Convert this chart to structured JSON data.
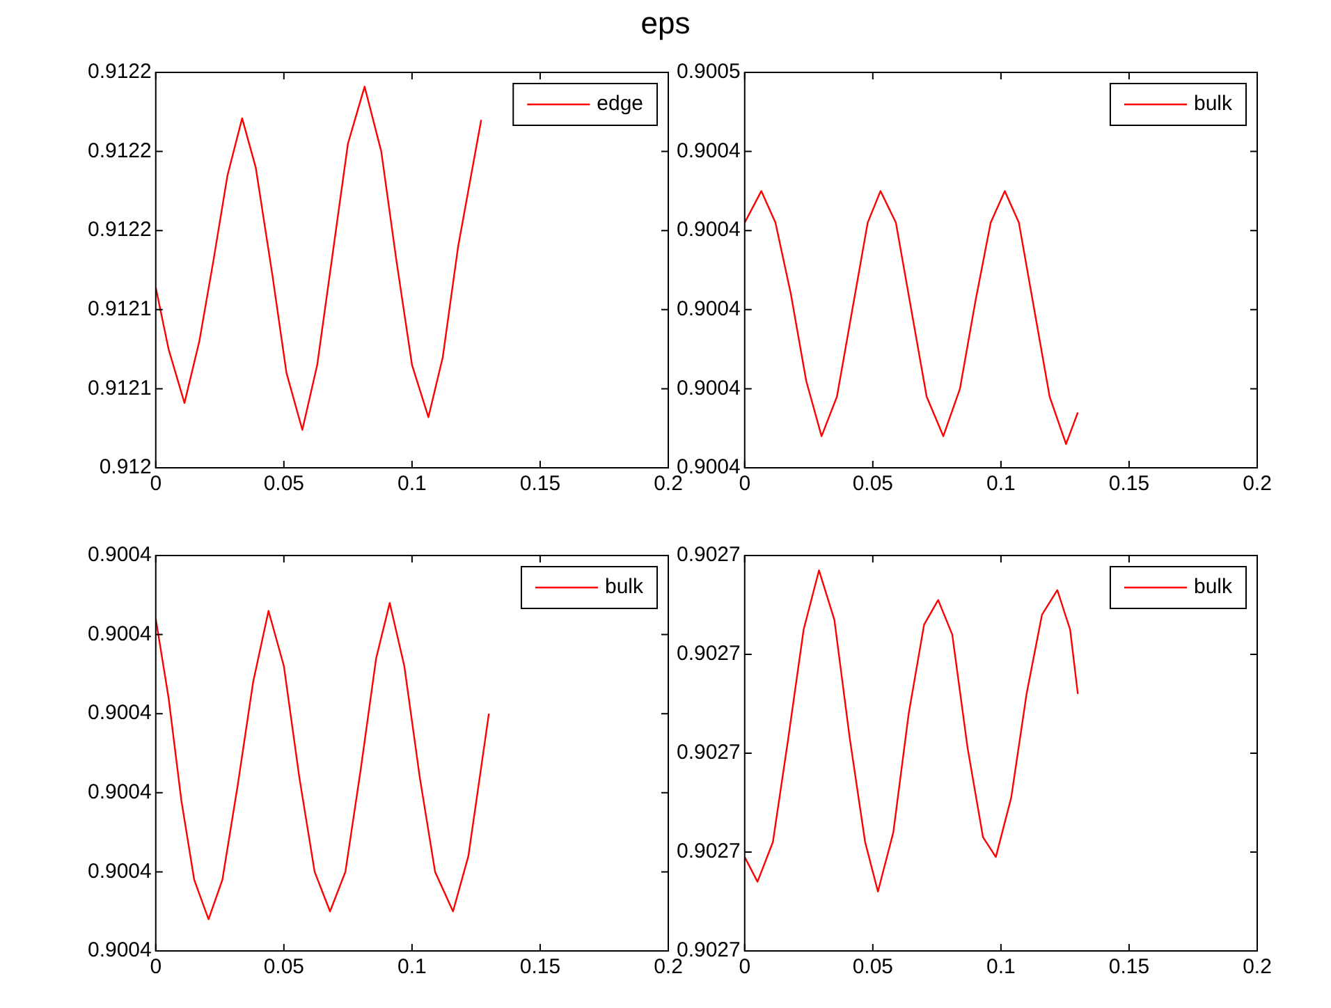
{
  "chart_data": [
    {
      "type": "line",
      "title": "eps",
      "legend": "top right",
      "marker": "none",
      "grid": false,
      "xlim": [
        0,
        0.2
      ],
      "xticks": [
        0,
        0.05,
        0.1,
        0.15,
        0.2
      ],
      "ylim": [
        0.912,
        0.91225
      ],
      "yticks": [
        0.912,
        {
          "value": 0.91205,
          "label": "0.9121"
        },
        {
          "value": 0.9121,
          "label": "0.9121"
        },
        {
          "value": 0.91215,
          "label": "0.9122"
        },
        {
          "value": 0.9122,
          "label": "0.9122"
        },
        {
          "value": 0.91225,
          "label": "0.9122"
        }
      ],
      "series": [
        {
          "name": "edge",
          "color": "#ff0000",
          "x": [
            0,
            0.005,
            0.0112,
            0.017,
            0.0225,
            0.028,
            0.0337,
            0.039,
            0.0455,
            0.051,
            0.0572,
            0.063,
            0.069,
            0.075,
            0.0815,
            0.088,
            0.094,
            0.1,
            0.1064,
            0.112,
            0.118,
            0.127
          ],
          "values": [
            0.912114,
            0.912075,
            0.912041,
            0.91208,
            0.912131,
            0.912185,
            0.912221,
            0.91219,
            0.912122,
            0.91206,
            0.912024,
            0.912065,
            0.912135,
            0.912205,
            0.912241,
            0.9122,
            0.91213,
            0.912065,
            0.912032,
            0.91207,
            0.91214,
            0.91222
          ]
        }
      ]
    },
    {
      "type": "line",
      "legend": "top right",
      "marker": "none",
      "grid": false,
      "xlim": [
        0,
        0.2
      ],
      "xticks": [
        0,
        0.05,
        0.1,
        0.15,
        0.2
      ],
      "ylim": [
        0.9004,
        0.90045
      ],
      "yticks": [
        0.9004,
        {
          "value": 0.90041,
          "label": "0.9004"
        },
        {
          "value": 0.90042,
          "label": "0.9004"
        },
        {
          "value": 0.90043,
          "label": "0.9004"
        },
        {
          "value": 0.90044,
          "label": "0.9004"
        },
        {
          "value": 0.90045,
          "label": "0.9005"
        }
      ],
      "series": [
        {
          "name": "bulk",
          "color": "#ff0000",
          "x": [
            0,
            0.0065,
            0.012,
            0.018,
            0.024,
            0.03,
            0.036,
            0.042,
            0.048,
            0.053,
            0.059,
            0.065,
            0.071,
            0.0775,
            0.084,
            0.09,
            0.096,
            0.1015,
            0.107,
            0.113,
            0.119,
            0.1254,
            0.13
          ],
          "values": [
            0.900431,
            0.900435,
            0.900431,
            0.900422,
            0.900411,
            0.900404,
            0.900409,
            0.90042,
            0.900431,
            0.900435,
            0.900431,
            0.90042,
            0.900409,
            0.900404,
            0.90041,
            0.900421,
            0.900431,
            0.900435,
            0.900431,
            0.90042,
            0.900409,
            0.900403,
            0.900407
          ]
        }
      ]
    },
    {
      "type": "line",
      "legend": "top right",
      "marker": "none",
      "grid": false,
      "xlim": [
        0,
        0.2
      ],
      "xticks": [
        0,
        0.05,
        0.1,
        0.15,
        0.2
      ],
      "ylim": [
        0.90036,
        0.90041
      ],
      "yticks": [
        {
          "value": 0.90036,
          "label": "0.9004"
        },
        {
          "value": 0.90037,
          "label": "0.9004"
        },
        {
          "value": 0.90038,
          "label": "0.9004"
        },
        {
          "value": 0.90039,
          "label": "0.9004"
        },
        {
          "value": 0.9004,
          "label": "0.9004"
        },
        {
          "value": 0.90041,
          "label": "0.9004"
        }
      ],
      "series": [
        {
          "name": "bulk",
          "color": "#ff0000",
          "x": [
            0,
            0.005,
            0.01,
            0.015,
            0.0206,
            0.026,
            0.032,
            0.038,
            0.044,
            0.05,
            0.056,
            0.062,
            0.068,
            0.074,
            0.08,
            0.086,
            0.0913,
            0.097,
            0.103,
            0.109,
            0.116,
            0.122,
            0.13
          ],
          "values": [
            0.900402,
            0.900392,
            0.900379,
            0.900369,
            0.900364,
            0.900369,
            0.900381,
            0.900394,
            0.900403,
            0.900396,
            0.900382,
            0.90037,
            0.900365,
            0.90037,
            0.900383,
            0.900397,
            0.900404,
            0.900396,
            0.900382,
            0.90037,
            0.900365,
            0.900372,
            0.90039
          ]
        }
      ]
    },
    {
      "type": "line",
      "legend": "top right",
      "marker": "none",
      "grid": false,
      "xlim": [
        0,
        0.2
      ],
      "xticks": [
        0,
        0.05,
        0.1,
        0.15,
        0.2
      ],
      "ylim": [
        0.90266,
        0.90274
      ],
      "yticks": [
        {
          "value": 0.90266,
          "label": "0.9027"
        },
        {
          "value": 0.90268,
          "label": "0.9027"
        },
        {
          "value": 0.9027,
          "label": "0.9027"
        },
        {
          "value": 0.90272,
          "label": "0.9027"
        },
        {
          "value": 0.90274,
          "label": "0.9027"
        }
      ],
      "series": [
        {
          "name": "bulk",
          "color": "#ff0000",
          "x": [
            0,
            0.005,
            0.011,
            0.017,
            0.023,
            0.029,
            0.035,
            0.041,
            0.047,
            0.052,
            0.058,
            0.064,
            0.07,
            0.0755,
            0.081,
            0.087,
            0.093,
            0.098,
            0.104,
            0.11,
            0.116,
            0.122,
            0.127,
            0.13
          ],
          "values": [
            0.902679,
            0.902674,
            0.902682,
            0.902703,
            0.902725,
            0.902737,
            0.902727,
            0.902703,
            0.902682,
            0.902672,
            0.902684,
            0.902708,
            0.902726,
            0.902731,
            0.902724,
            0.902701,
            0.902683,
            0.902679,
            0.902691,
            0.902712,
            0.902728,
            0.902733,
            0.902725,
            0.902712
          ]
        }
      ]
    }
  ]
}
